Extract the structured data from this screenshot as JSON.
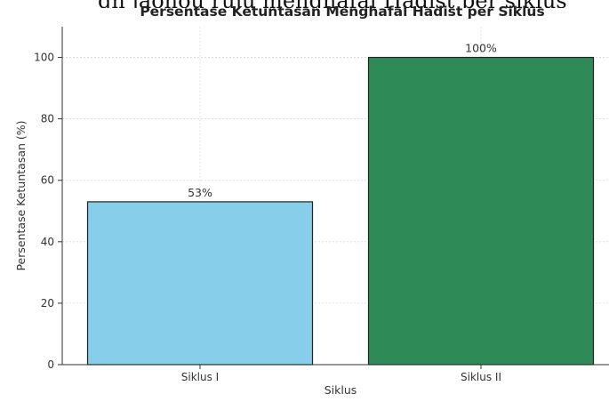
{
  "header_fragment": "gn jaonou ruju menghafal Hadist per siklus",
  "chart_data": {
    "type": "bar",
    "title": "Persentase Ketuntasan Menghafal Hadist per Siklus",
    "xlabel": "Siklus",
    "ylabel": "Persentase Ketuntasan (%)",
    "categories": [
      "Siklus I",
      "Siklus II"
    ],
    "values": [
      53,
      100
    ],
    "value_labels": [
      "53%",
      "100%"
    ],
    "bar_colors": [
      "#87ceeb",
      "#2e8b57"
    ],
    "edge_color": "#222222",
    "ylim": [
      0,
      110
    ],
    "yticks": [
      0,
      20,
      40,
      60,
      80,
      100
    ],
    "ytick_labels": [
      "0",
      "20",
      "40",
      "60",
      "80",
      "100"
    ],
    "grid": true
  }
}
